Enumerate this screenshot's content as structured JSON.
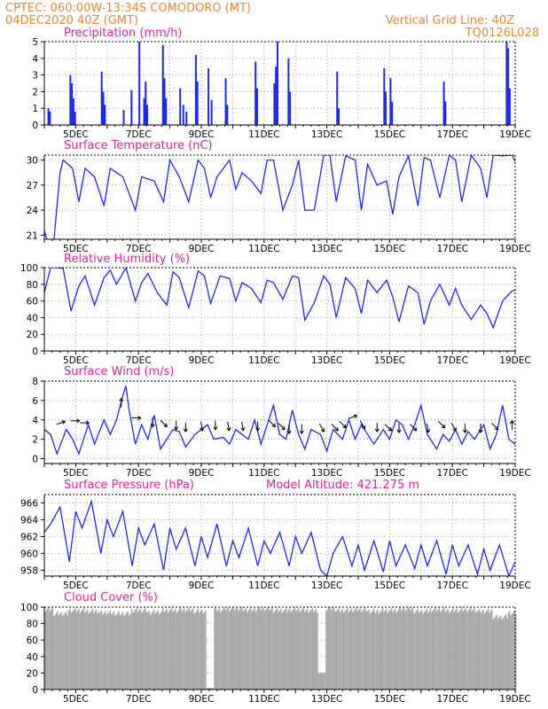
{
  "header": {
    "line1_left": "CPTEC:   060:00W-13:34S   COMODORO (MT)",
    "line2_left": "04DEC2020 40Z (GMT)",
    "line1_right": "Vertical Grid Line: 40Z",
    "line2_right": "TQ0126L028"
  },
  "colors": {
    "header": "#e8842c",
    "title": "#e0209e",
    "series": "#1c28f0",
    "cloud": "#a8a8a8",
    "grid": "#9a9a9a"
  },
  "x_axis": {
    "ticks": [
      "5DEC",
      "7DEC",
      "9DEC",
      "11DEC",
      "13DEC",
      "15DEC",
      "17DEC",
      "19DEC"
    ]
  },
  "panels": [
    {
      "key": "precip",
      "title": "Precipitation (mm/h)",
      "yticks": [
        "0",
        "1",
        "2",
        "3",
        "4",
        "5"
      ]
    },
    {
      "key": "temp",
      "title": "Surface Temperature (nC)",
      "yticks": [
        "21",
        "24",
        "27",
        "30"
      ]
    },
    {
      "key": "rh",
      "title": "Relative Humidity (%)",
      "yticks": [
        "0",
        "20",
        "40",
        "60",
        "80",
        "100"
      ]
    },
    {
      "key": "wind",
      "title": "Surface Wind (m/s)",
      "yticks": [
        "0",
        "2",
        "4",
        "6",
        "8"
      ]
    },
    {
      "key": "press",
      "title": "Surface Pressure (hPa)",
      "extra": "Model Altitude: 421.275 m",
      "yticks": [
        "958",
        "960",
        "962",
        "964",
        "966"
      ]
    },
    {
      "key": "cloud",
      "title": "Cloud Cover (%)",
      "yticks": [
        "0",
        "20",
        "40",
        "60",
        "80",
        "100"
      ]
    }
  ],
  "chart_data": [
    {
      "type": "bar",
      "title": "Precipitation (mm/h)",
      "x_unit": "day of Dec 2020",
      "ylim": [
        0,
        5
      ],
      "x": [
        4.1,
        4.15,
        4.8,
        4.85,
        4.9,
        4.95,
        5.8,
        5.85,
        5.9,
        6.5,
        6.75,
        7.0,
        7.15,
        7.2,
        7.25,
        7.75,
        7.8,
        7.85,
        8.3,
        8.4,
        8.5,
        8.8,
        8.85,
        9.2,
        9.3,
        9.75,
        9.8,
        10.7,
        10.75,
        11.3,
        11.35,
        11.4,
        11.75,
        11.8,
        13.3,
        13.35,
        14.8,
        14.85,
        15.0,
        15.05,
        16.7,
        16.75,
        18.7,
        18.75,
        18.8
      ],
      "values": [
        1.0,
        0.8,
        3.0,
        2.5,
        1.6,
        0.8,
        3.2,
        2.0,
        1.2,
        0.9,
        2.1,
        5.0,
        1.6,
        2.6,
        1.2,
        4.8,
        2.8,
        1.6,
        2.2,
        1.2,
        0.8,
        4.2,
        2.6,
        3.4,
        1.5,
        2.8,
        1.2,
        3.8,
        2.2,
        2.5,
        3.5,
        5.0,
        4.0,
        2.0,
        3.2,
        1.0,
        3.4,
        2.0,
        2.8,
        1.4,
        2.6,
        1.4,
        5.0,
        4.6,
        2.2
      ]
    },
    {
      "type": "line",
      "title": "Surface Temperature (nC)",
      "x_unit": "day of Dec 2020",
      "ylim": [
        20.5,
        30.6
      ],
      "x": [
        4.0,
        4.1,
        4.3,
        4.5,
        4.6,
        4.9,
        5.1,
        5.3,
        5.6,
        5.9,
        6.1,
        6.3,
        6.5,
        6.9,
        7.1,
        7.5,
        7.8,
        8.0,
        8.3,
        8.6,
        8.9,
        9.1,
        9.3,
        9.5,
        9.9,
        10.1,
        10.3,
        10.6,
        10.9,
        11.1,
        11.3,
        11.6,
        11.9,
        12.1,
        12.3,
        12.6,
        12.9,
        13.1,
        13.3,
        13.6,
        13.9,
        14.1,
        14.3,
        14.6,
        14.9,
        15.1,
        15.3,
        15.6,
        15.9,
        16.1,
        16.3,
        16.6,
        16.9,
        17.1,
        17.3,
        17.6,
        17.9,
        18.1,
        18.3,
        18.6,
        18.9,
        19.0
      ],
      "values": [
        21.5,
        20.3,
        20.2,
        28.5,
        30.0,
        29.0,
        25.0,
        29.0,
        28.0,
        24.5,
        29.0,
        28.5,
        28.0,
        24.0,
        28.0,
        27.5,
        25.0,
        30.0,
        28.0,
        25.0,
        30.0,
        29.0,
        25.5,
        28.0,
        30.0,
        26.5,
        28.5,
        27.5,
        26.0,
        30.0,
        30.0,
        24.0,
        27.0,
        30.0,
        24.0,
        24.0,
        30.6,
        30.6,
        25.0,
        30.5,
        30.0,
        24.0,
        29.5,
        27.0,
        27.5,
        23.5,
        28.0,
        30.5,
        24.5,
        30.3,
        30.0,
        25.5,
        30.6,
        30.0,
        25.0,
        30.6,
        29.0,
        25.5,
        30.6,
        30.5,
        30.6,
        29.8
      ]
    },
    {
      "type": "line",
      "title": "Relative Humidity (%)",
      "x_unit": "day of Dec 2020",
      "ylim": [
        0,
        100
      ],
      "x": [
        4.0,
        4.2,
        4.4,
        4.6,
        4.85,
        5.1,
        5.3,
        5.6,
        5.9,
        6.1,
        6.3,
        6.6,
        6.9,
        7.1,
        7.3,
        7.6,
        7.9,
        8.1,
        8.3,
        8.6,
        8.9,
        9.1,
        9.3,
        9.6,
        9.9,
        10.1,
        10.3,
        10.6,
        10.9,
        11.1,
        11.3,
        11.6,
        11.9,
        12.1,
        12.3,
        12.6,
        12.9,
        13.1,
        13.3,
        13.6,
        13.9,
        14.1,
        14.3,
        14.6,
        14.9,
        15.1,
        15.3,
        15.6,
        15.9,
        16.1,
        16.3,
        16.6,
        16.9,
        17.1,
        17.3,
        17.6,
        17.9,
        18.1,
        18.3,
        18.6,
        18.9,
        19.0
      ],
      "values": [
        70,
        100,
        100,
        99,
        48,
        78,
        90,
        55,
        88,
        97,
        80,
        100,
        60,
        82,
        93,
        70,
        55,
        95,
        88,
        52,
        96,
        90,
        57,
        90,
        87,
        60,
        82,
        75,
        58,
        85,
        82,
        62,
        90,
        88,
        37,
        58,
        90,
        80,
        40,
        88,
        75,
        45,
        85,
        70,
        85,
        65,
        35,
        78,
        70,
        32,
        60,
        80,
        55,
        75,
        55,
        38,
        55,
        45,
        28,
        60,
        72,
        73
      ]
    },
    {
      "type": "line",
      "title": "Surface Wind (m/s)",
      "x_unit": "day of Dec 2020",
      "ylim": [
        -0.5,
        8
      ],
      "x": [
        4.0,
        4.2,
        4.4,
        4.7,
        4.9,
        5.1,
        5.4,
        5.6,
        5.9,
        6.1,
        6.3,
        6.5,
        6.6,
        6.7,
        6.9,
        7.1,
        7.3,
        7.5,
        7.7,
        7.9,
        8.1,
        8.3,
        8.5,
        8.8,
        9.0,
        9.2,
        9.4,
        9.7,
        9.9,
        10.1,
        10.3,
        10.5,
        10.7,
        10.9,
        11.1,
        11.3,
        11.5,
        11.7,
        11.9,
        12.1,
        12.3,
        12.5,
        12.8,
        13.0,
        13.2,
        13.5,
        13.7,
        13.9,
        14.1,
        14.3,
        14.5,
        14.8,
        15.0,
        15.2,
        15.4,
        15.6,
        15.8,
        16.0,
        16.2,
        16.5,
        16.7,
        16.9,
        17.1,
        17.3,
        17.5,
        17.7,
        18.0,
        18.2,
        18.4,
        18.6,
        18.8,
        19.0
      ],
      "values": [
        3.0,
        2.5,
        0.5,
        3.0,
        2.0,
        0.5,
        3.5,
        1.5,
        4.0,
        2.5,
        4.0,
        6.5,
        7.5,
        5.0,
        1.5,
        3.5,
        2.0,
        4.5,
        1.0,
        2.0,
        3.0,
        2.8,
        1.2,
        2.5,
        3.0,
        3.5,
        2.0,
        2.2,
        1.5,
        3.0,
        2.5,
        2.0,
        4.0,
        1.5,
        3.5,
        5.5,
        2.5,
        2.0,
        5.0,
        2.5,
        1.0,
        3.0,
        2.5,
        0.8,
        3.0,
        2.0,
        4.0,
        2.0,
        3.5,
        2.5,
        1.5,
        3.0,
        2.0,
        4.0,
        3.5,
        2.0,
        3.5,
        5.5,
        2.5,
        1.0,
        2.5,
        1.8,
        3.0,
        1.5,
        2.8,
        2.0,
        3.5,
        1.0,
        2.5,
        5.5,
        2.0,
        1.5
      ]
    },
    {
      "type": "line",
      "title": "Surface Pressure (hPa)",
      "x_unit": "day of Dec 2020",
      "ylim": [
        957.3,
        967.0
      ],
      "x": [
        4.0,
        4.2,
        4.5,
        4.8,
        5.0,
        5.2,
        5.5,
        5.8,
        6.0,
        6.2,
        6.5,
        6.8,
        7.0,
        7.2,
        7.5,
        7.8,
        8.0,
        8.2,
        8.5,
        8.8,
        9.0,
        9.2,
        9.5,
        9.8,
        10.0,
        10.2,
        10.5,
        10.8,
        11.0,
        11.2,
        11.5,
        11.8,
        12.0,
        12.2,
        12.5,
        12.8,
        13.0,
        13.2,
        13.5,
        13.8,
        14.0,
        14.2,
        14.5,
        14.8,
        15.0,
        15.2,
        15.5,
        15.8,
        16.0,
        16.2,
        16.5,
        16.8,
        17.0,
        17.2,
        17.5,
        17.8,
        18.0,
        18.2,
        18.5,
        18.8,
        19.0
      ],
      "values": [
        962.5,
        963.5,
        965.5,
        959.0,
        965.0,
        963.0,
        966.2,
        960.0,
        964.0,
        962.0,
        965.0,
        958.5,
        963.0,
        961.0,
        963.5,
        958.0,
        963.0,
        960.5,
        963.0,
        958.5,
        962.0,
        959.5,
        963.5,
        958.5,
        961.5,
        959.5,
        963.0,
        958.5,
        961.5,
        960.0,
        962.5,
        958.5,
        962.0,
        960.0,
        962.5,
        958.0,
        957.3,
        960.0,
        962.0,
        958.5,
        961.0,
        958.0,
        961.5,
        957.8,
        961.5,
        958.5,
        961.0,
        958.2,
        961.0,
        958.5,
        961.5,
        957.5,
        961.0,
        958.5,
        961.0,
        957.5,
        960.5,
        958.0,
        961.0,
        957.3,
        959.0
      ]
    },
    {
      "type": "bar",
      "title": "Cloud Cover (%)",
      "x_unit": "day of Dec 2020",
      "ylim": [
        0,
        100
      ],
      "x": [
        4.0,
        4.5,
        5.0,
        5.5,
        6.0,
        6.5,
        7.0,
        7.5,
        8.0,
        8.5,
        9.0,
        9.3,
        9.5,
        10.0,
        10.5,
        11.0,
        11.5,
        12.0,
        12.5,
        12.9,
        13.0,
        13.5,
        14.0,
        14.5,
        15.0,
        15.5,
        16.0,
        16.5,
        17.0,
        17.5,
        18.0,
        18.5,
        19.0
      ],
      "values": [
        97,
        92,
        96,
        95,
        93,
        92,
        96,
        94,
        96,
        97,
        95,
        2,
        97,
        98,
        97,
        98,
        96,
        97,
        96,
        20,
        98,
        96,
        97,
        95,
        96,
        98,
        95,
        97,
        96,
        97,
        95,
        88,
        93
      ]
    }
  ]
}
